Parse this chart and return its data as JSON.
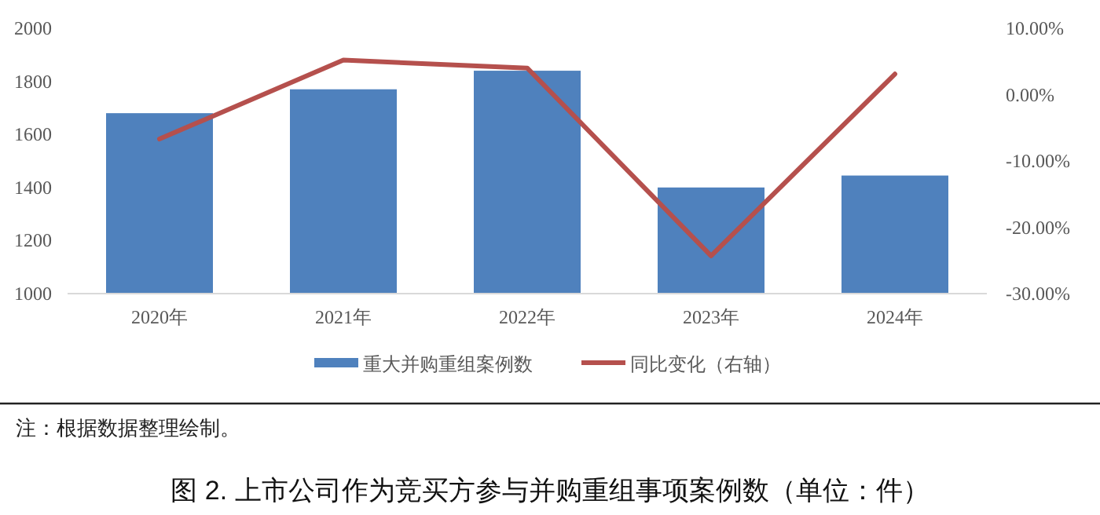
{
  "chart_data": {
    "type": "bar",
    "title": "图 2. 上市公司作为竞买方参与并购重组事项案例数（单位：件）",
    "annotations": [
      "注：根据数据整理绘制。"
    ],
    "categories": [
      "2020年",
      "2021年",
      "2022年",
      "2023年",
      "2024年"
    ],
    "series": [
      {
        "name": "重大并购重组案例数",
        "color": "#4f81bd",
        "values": [
          1680,
          1770,
          1840,
          1400,
          1445
        ]
      },
      {
        "name": "同比变化（右轴）",
        "type": "line",
        "axis": "y2",
        "color": "#b5504d",
        "values": [
          -6.7,
          5.2,
          4.0,
          -24.3,
          3.1
        ]
      }
    ],
    "ylim": [
      1000,
      2000
    ],
    "yticks": [
      1000,
      1200,
      1400,
      1600,
      1800,
      2000
    ],
    "y2lim": [
      -30,
      10
    ],
    "y2ticks": [
      {
        "value": -30,
        "label": "-30.00%"
      },
      {
        "value": -20,
        "label": "-20.00%"
      },
      {
        "value": -10,
        "label": "-10.00%"
      },
      {
        "value": 0,
        "label": "0.00%"
      },
      {
        "value": 10,
        "label": "10.00%"
      }
    ],
    "legend": "bottom"
  }
}
